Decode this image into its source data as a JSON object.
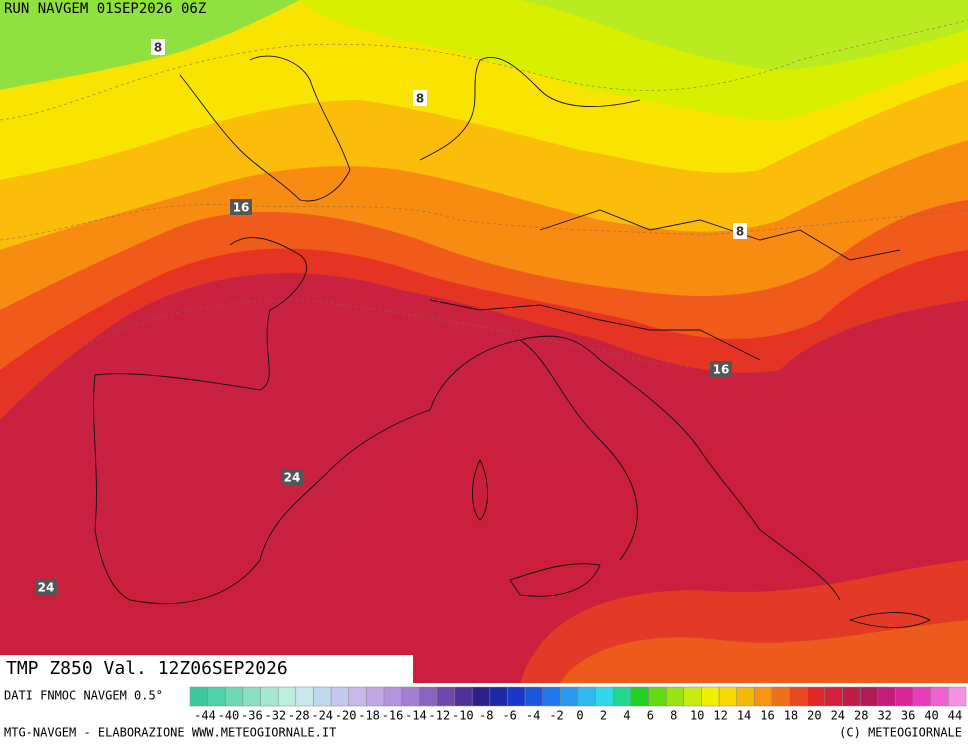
{
  "header": {
    "run": "RUN NAVGEM 01SEP2026 06Z"
  },
  "map": {
    "contour_labels": [
      8,
      8,
      16,
      8,
      16,
      24,
      24
    ]
  },
  "title": "TMP  Z850  Val. 12Z06SEP2026",
  "source": "DATI FNMOC NAVGEM 0.5°",
  "colorbar": {
    "colors": [
      "#3cc89c",
      "#50d0a8",
      "#6cd8b4",
      "#88e0c0",
      "#a4e8d0",
      "#bceedc",
      "#c8e8ec",
      "#c0d8f0",
      "#c4c8f0",
      "#c8b8ec",
      "#c0a8e4",
      "#b494dc",
      "#a47ed0",
      "#8c64c0",
      "#7048ac",
      "#503098",
      "#2c2088",
      "#1c28a8",
      "#1838c8",
      "#1c58dc",
      "#2078ec",
      "#2898f0",
      "#30b8f0",
      "#30d8e8",
      "#20d890",
      "#20d020",
      "#60dc10",
      "#98e410",
      "#c8ec10",
      "#f0f000",
      "#f8d800",
      "#f8b808",
      "#f89410",
      "#f07018",
      "#e84820",
      "#e02828",
      "#d0203c",
      "#c01c48",
      "#b01c58",
      "#c41c7c",
      "#d82498",
      "#e83cb8",
      "#f060d0",
      "#f890e4"
    ],
    "labels": [
      "-44",
      "-40",
      "-36",
      "-32",
      "-28",
      "-24",
      "-20",
      "-18",
      "-16",
      "-14",
      "-12",
      "-10",
      "-8",
      "-6",
      "-4",
      "-2",
      "0",
      "2",
      "4",
      "6",
      "8",
      "10",
      "12",
      "14",
      "16",
      "18",
      "20",
      "24",
      "28",
      "32",
      "36",
      "40",
      "44"
    ]
  },
  "footer": {
    "left": "MTG-NAVGEM - ELABORAZIONE WWW.METEOGIORNALE.IT",
    "right": "(C) METEOGIORNALE"
  }
}
